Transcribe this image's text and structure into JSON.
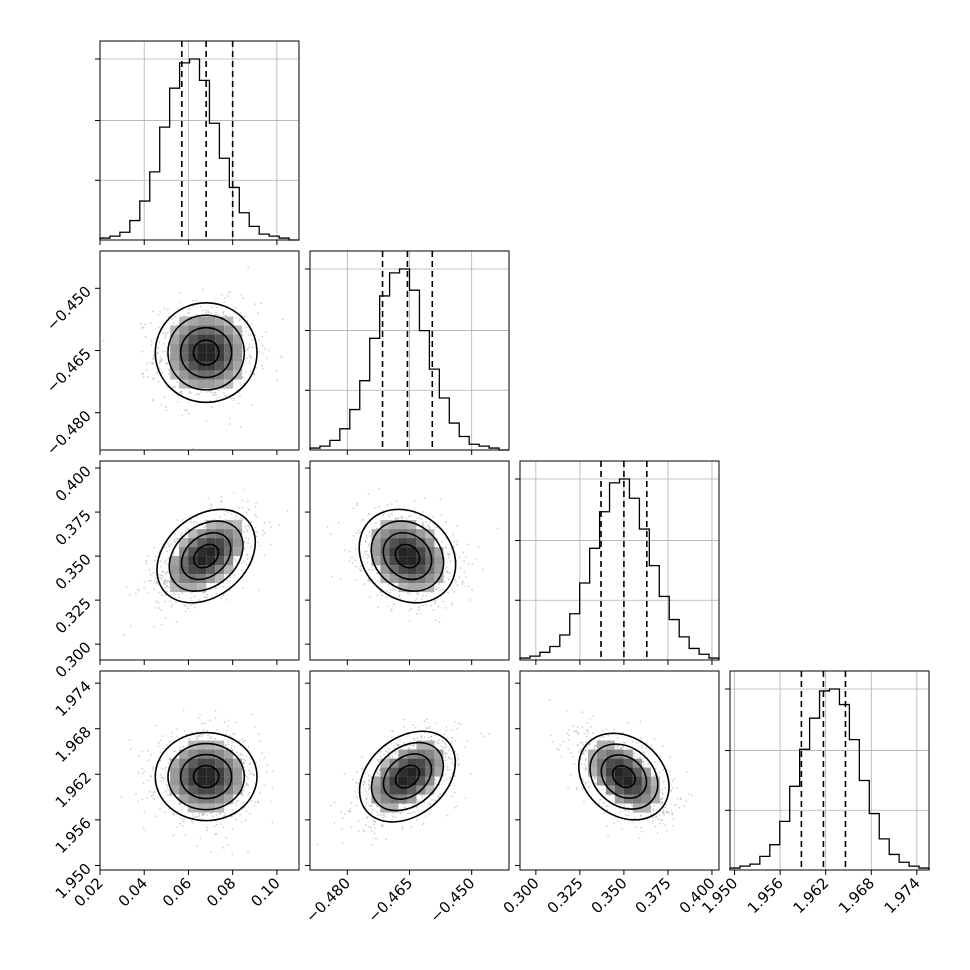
{
  "chart_data": {
    "type": "corner",
    "parameters": [
      {
        "range": [
          0.02,
          0.11
        ],
        "ticks": [
          0.02,
          0.04,
          0.06,
          0.08,
          0.1
        ],
        "tick_labels": [
          "0.02",
          "0.04",
          "0.06",
          "0.08",
          "0.10"
        ],
        "median": 0.068,
        "quantiles": [
          0.057,
          0.068,
          0.08
        ]
      },
      {
        "range": [
          -0.489,
          -0.441
        ],
        "ticks": [
          -0.48,
          -0.465,
          -0.45
        ],
        "tick_labels": [
          "−0.480",
          "−0.465",
          "−0.450"
        ],
        "median": -0.4655,
        "quantiles": [
          -0.4715,
          -0.4655,
          -0.4595
        ]
      },
      {
        "range": [
          0.291,
          0.404
        ],
        "ticks": [
          0.3,
          0.325,
          0.35,
          0.375,
          0.4
        ],
        "tick_labels": [
          "0.300",
          "0.325",
          "0.350",
          "0.375",
          "0.400"
        ],
        "median": 0.35,
        "quantiles": [
          0.337,
          0.35,
          0.363
        ]
      },
      {
        "range": [
          1.9494,
          1.9756
        ],
        "ticks": [
          1.95,
          1.956,
          1.962,
          1.968,
          1.974
        ],
        "tick_labels": [
          "1.950",
          "1.956",
          "1.962",
          "1.968",
          "1.974"
        ],
        "median": 1.9617,
        "quantiles": [
          1.9588,
          1.9617,
          1.9646
        ]
      }
    ],
    "histograms": [
      [
        1,
        2,
        4,
        10,
        20,
        35,
        58,
        78,
        91,
        93,
        82,
        60,
        42,
        27,
        14,
        7,
        3,
        2,
        1,
        0
      ],
      [
        1,
        2,
        5,
        11,
        21,
        36,
        58,
        80,
        92,
        94,
        83,
        62,
        42,
        27,
        14,
        7,
        3,
        2,
        1,
        0
      ],
      [
        1,
        2,
        4,
        7,
        13,
        24,
        40,
        58,
        77,
        92,
        94,
        84,
        68,
        49,
        33,
        21,
        12,
        6,
        3,
        1
      ],
      [
        1,
        2,
        3,
        7,
        13,
        25,
        43,
        62,
        78,
        92,
        93,
        85,
        67,
        46,
        29,
        16,
        8,
        4,
        2,
        1
      ]
    ],
    "correlations": {
      "1-0": 0.0,
      "2-0": 0.5,
      "2-1": -0.25,
      "3-0": 0.0,
      "3-1": 0.5,
      "3-2": -0.5
    },
    "contour_levels": [
      0.5,
      1.0,
      1.5,
      2.0
    ],
    "grid": true,
    "colors": {
      "line": "#000000",
      "grid": "#b0b0b0",
      "points": "#9a9a9a"
    }
  }
}
